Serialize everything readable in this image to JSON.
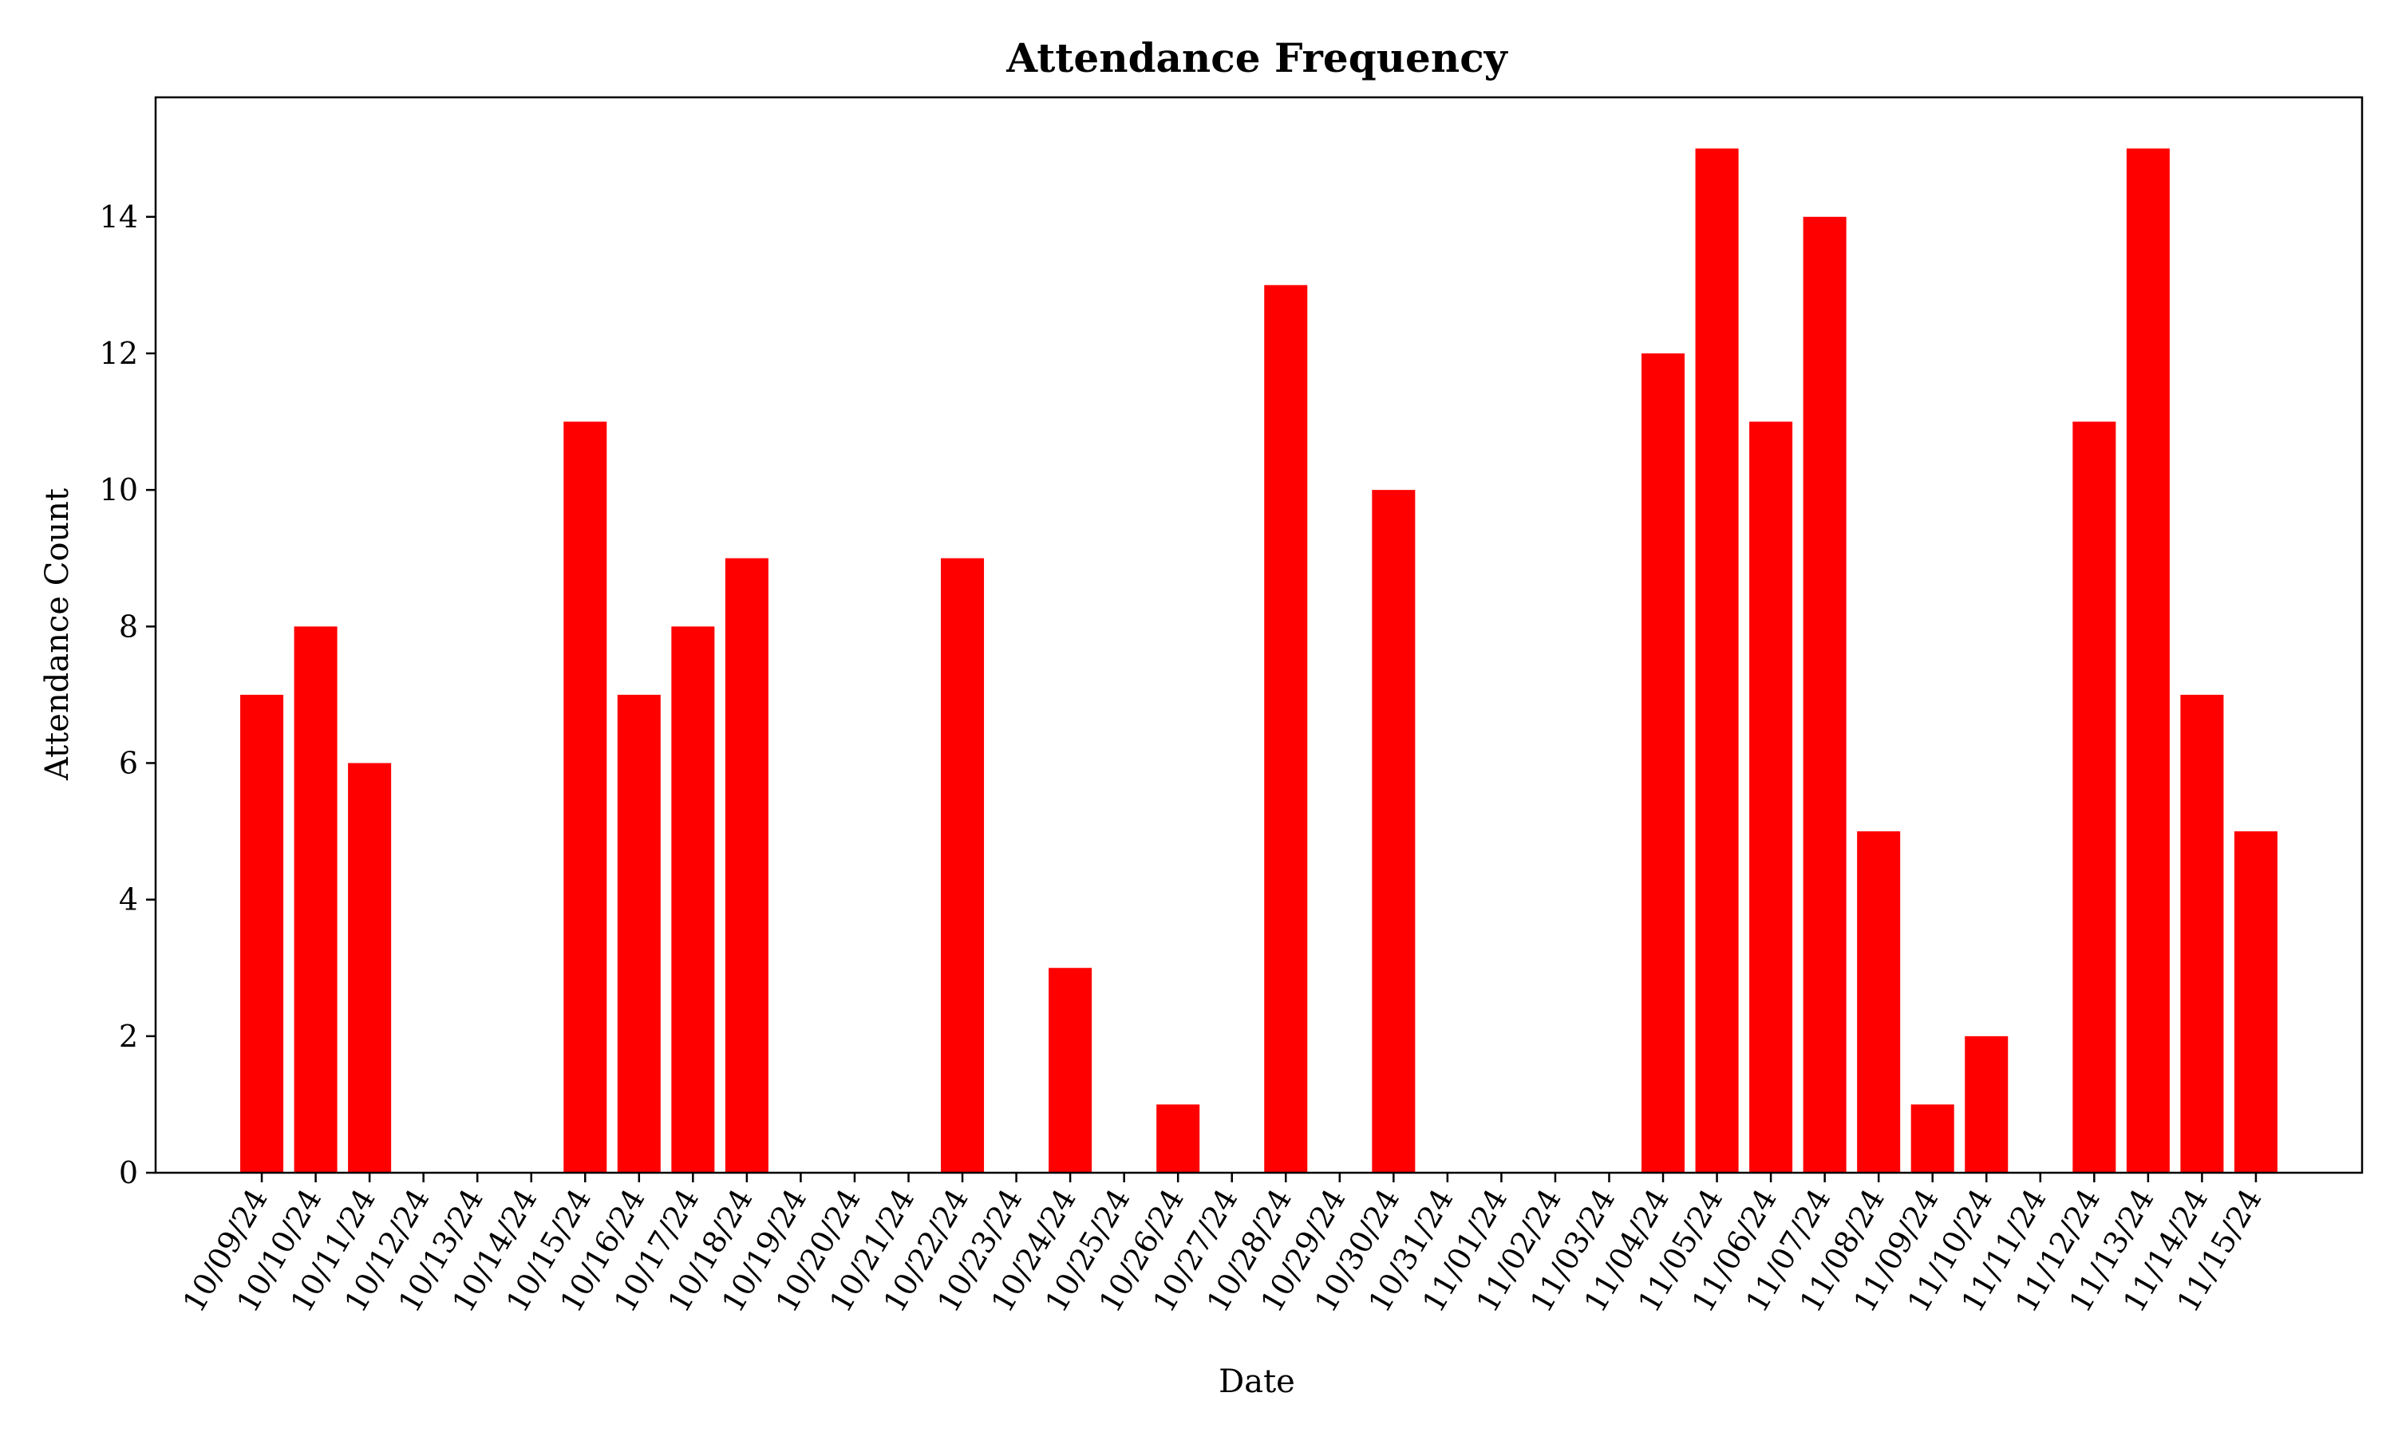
{
  "chart_data": {
    "type": "bar",
    "title": "Attendance Frequency",
    "xlabel": "Date",
    "ylabel": "Attendance Count",
    "ylim": [
      0,
      15.75
    ],
    "yticks": [
      0,
      2,
      4,
      6,
      8,
      10,
      12,
      14
    ],
    "bar_color": "#ff0000",
    "grid": false,
    "categories": [
      "10/09/24",
      "10/10/24",
      "10/11/24",
      "10/12/24",
      "10/13/24",
      "10/14/24",
      "10/15/24",
      "10/16/24",
      "10/17/24",
      "10/18/24",
      "10/19/24",
      "10/20/24",
      "10/21/24",
      "10/22/24",
      "10/23/24",
      "10/24/24",
      "10/25/24",
      "10/26/24",
      "10/27/24",
      "10/28/24",
      "10/29/24",
      "10/30/24",
      "10/31/24",
      "11/01/24",
      "11/02/24",
      "11/03/24",
      "11/04/24",
      "11/05/24",
      "11/06/24",
      "11/07/24",
      "11/08/24",
      "11/09/24",
      "11/10/24",
      "11/11/24",
      "11/12/24",
      "11/13/24",
      "11/14/24",
      "11/15/24"
    ],
    "values": [
      7,
      8,
      6,
      0,
      0,
      0,
      11,
      7,
      8,
      9,
      0,
      0,
      0,
      9,
      0,
      3,
      0,
      1,
      0,
      13,
      0,
      10,
      0,
      0,
      0,
      0,
      12,
      15,
      11,
      14,
      5,
      1,
      2,
      0,
      11,
      15,
      7,
      5
    ]
  }
}
